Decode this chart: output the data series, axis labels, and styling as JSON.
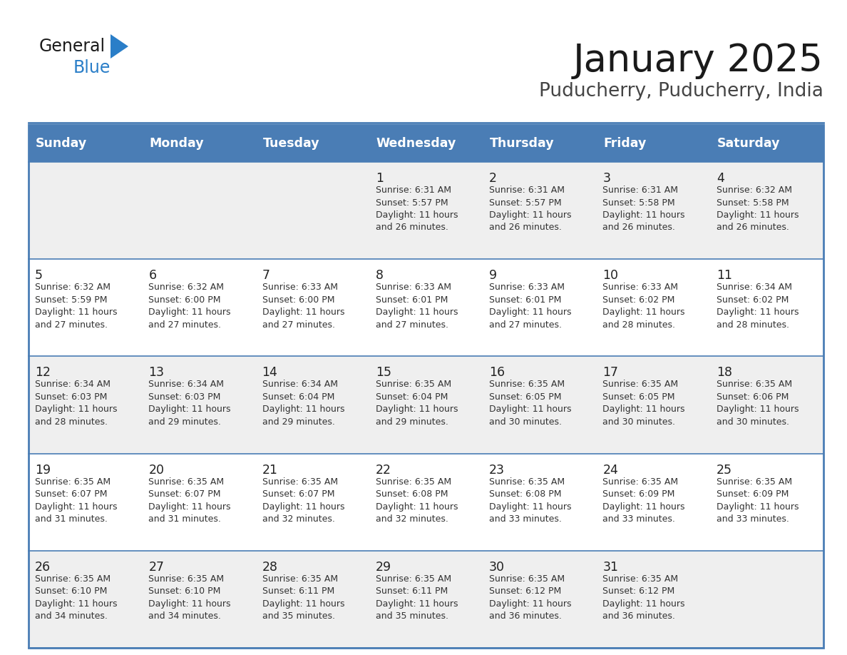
{
  "title": "January 2025",
  "subtitle": "Puducherry, Puducherry, India",
  "days_of_week": [
    "Sunday",
    "Monday",
    "Tuesday",
    "Wednesday",
    "Thursday",
    "Friday",
    "Saturday"
  ],
  "header_bg": "#4A7DB5",
  "header_text": "#FFFFFF",
  "cell_bg_odd": "#EFEFEF",
  "cell_bg_even": "#FFFFFF",
  "border_color": "#4A7DB5",
  "title_color": "#1a1a1a",
  "subtitle_color": "#444444",
  "day_num_color": "#222222",
  "cell_text_color": "#333333",
  "logo_general_color": "#1a1a1a",
  "logo_blue_color": "#2A7EC8",
  "num_rows": 5,
  "num_cols": 7,
  "calendar": [
    [
      "",
      "",
      "",
      "1\nSunrise: 6:31 AM\nSunset: 5:57 PM\nDaylight: 11 hours\nand 26 minutes.",
      "2\nSunrise: 6:31 AM\nSunset: 5:57 PM\nDaylight: 11 hours\nand 26 minutes.",
      "3\nSunrise: 6:31 AM\nSunset: 5:58 PM\nDaylight: 11 hours\nand 26 minutes.",
      "4\nSunrise: 6:32 AM\nSunset: 5:58 PM\nDaylight: 11 hours\nand 26 minutes."
    ],
    [
      "5\nSunrise: 6:32 AM\nSunset: 5:59 PM\nDaylight: 11 hours\nand 27 minutes.",
      "6\nSunrise: 6:32 AM\nSunset: 6:00 PM\nDaylight: 11 hours\nand 27 minutes.",
      "7\nSunrise: 6:33 AM\nSunset: 6:00 PM\nDaylight: 11 hours\nand 27 minutes.",
      "8\nSunrise: 6:33 AM\nSunset: 6:01 PM\nDaylight: 11 hours\nand 27 minutes.",
      "9\nSunrise: 6:33 AM\nSunset: 6:01 PM\nDaylight: 11 hours\nand 27 minutes.",
      "10\nSunrise: 6:33 AM\nSunset: 6:02 PM\nDaylight: 11 hours\nand 28 minutes.",
      "11\nSunrise: 6:34 AM\nSunset: 6:02 PM\nDaylight: 11 hours\nand 28 minutes."
    ],
    [
      "12\nSunrise: 6:34 AM\nSunset: 6:03 PM\nDaylight: 11 hours\nand 28 minutes.",
      "13\nSunrise: 6:34 AM\nSunset: 6:03 PM\nDaylight: 11 hours\nand 29 minutes.",
      "14\nSunrise: 6:34 AM\nSunset: 6:04 PM\nDaylight: 11 hours\nand 29 minutes.",
      "15\nSunrise: 6:35 AM\nSunset: 6:04 PM\nDaylight: 11 hours\nand 29 minutes.",
      "16\nSunrise: 6:35 AM\nSunset: 6:05 PM\nDaylight: 11 hours\nand 30 minutes.",
      "17\nSunrise: 6:35 AM\nSunset: 6:05 PM\nDaylight: 11 hours\nand 30 minutes.",
      "18\nSunrise: 6:35 AM\nSunset: 6:06 PM\nDaylight: 11 hours\nand 30 minutes."
    ],
    [
      "19\nSunrise: 6:35 AM\nSunset: 6:07 PM\nDaylight: 11 hours\nand 31 minutes.",
      "20\nSunrise: 6:35 AM\nSunset: 6:07 PM\nDaylight: 11 hours\nand 31 minutes.",
      "21\nSunrise: 6:35 AM\nSunset: 6:07 PM\nDaylight: 11 hours\nand 32 minutes.",
      "22\nSunrise: 6:35 AM\nSunset: 6:08 PM\nDaylight: 11 hours\nand 32 minutes.",
      "23\nSunrise: 6:35 AM\nSunset: 6:08 PM\nDaylight: 11 hours\nand 33 minutes.",
      "24\nSunrise: 6:35 AM\nSunset: 6:09 PM\nDaylight: 11 hours\nand 33 minutes.",
      "25\nSunrise: 6:35 AM\nSunset: 6:09 PM\nDaylight: 11 hours\nand 33 minutes."
    ],
    [
      "26\nSunrise: 6:35 AM\nSunset: 6:10 PM\nDaylight: 11 hours\nand 34 minutes.",
      "27\nSunrise: 6:35 AM\nSunset: 6:10 PM\nDaylight: 11 hours\nand 34 minutes.",
      "28\nSunrise: 6:35 AM\nSunset: 6:11 PM\nDaylight: 11 hours\nand 35 minutes.",
      "29\nSunrise: 6:35 AM\nSunset: 6:11 PM\nDaylight: 11 hours\nand 35 minutes.",
      "30\nSunrise: 6:35 AM\nSunset: 6:12 PM\nDaylight: 11 hours\nand 36 minutes.",
      "31\nSunrise: 6:35 AM\nSunset: 6:12 PM\nDaylight: 11 hours\nand 36 minutes.",
      ""
    ]
  ]
}
